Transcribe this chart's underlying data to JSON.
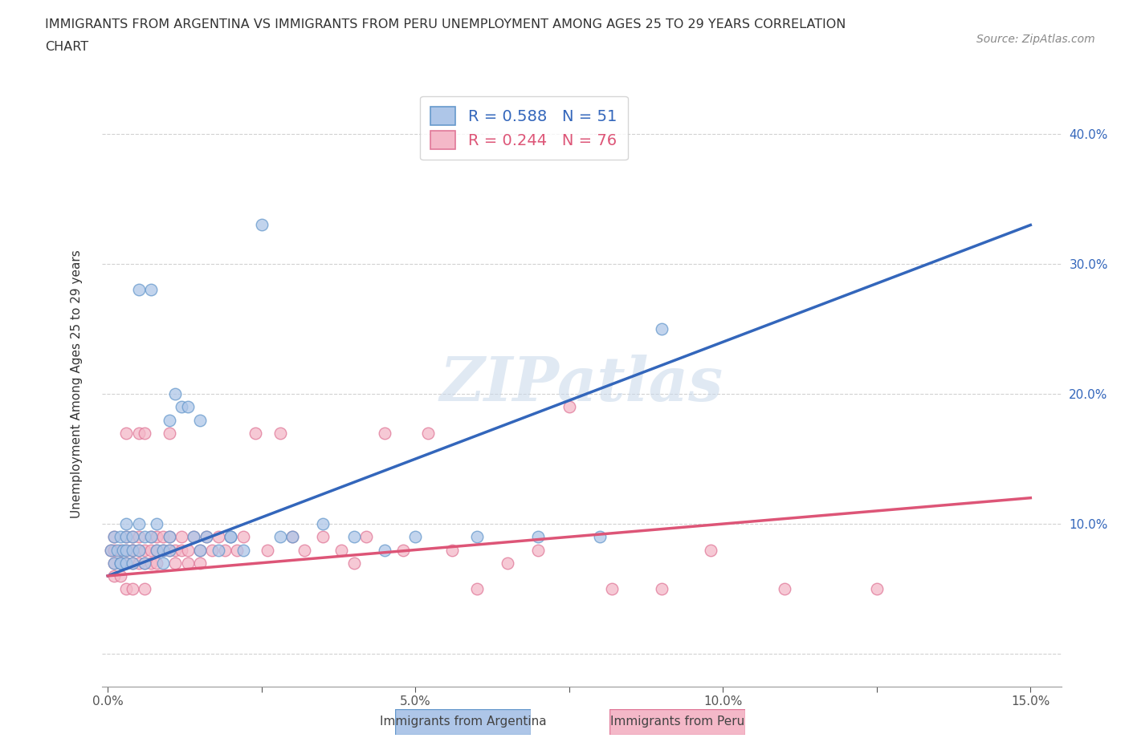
{
  "title_line1": "IMMIGRANTS FROM ARGENTINA VS IMMIGRANTS FROM PERU UNEMPLOYMENT AMONG AGES 25 TO 29 YEARS CORRELATION",
  "title_line2": "CHART",
  "source_text": "Source: ZipAtlas.com",
  "ylabel": "Unemployment Among Ages 25 to 29 years",
  "xlim": [
    -0.001,
    0.155
  ],
  "ylim": [
    -0.025,
    0.44
  ],
  "xticks": [
    0.0,
    0.025,
    0.05,
    0.075,
    0.1,
    0.125,
    0.15
  ],
  "xticklabels": [
    "0.0%",
    "",
    "5.0%",
    "",
    "10.0%",
    "",
    "15.0%"
  ],
  "yticks": [
    0.0,
    0.1,
    0.2,
    0.3,
    0.4
  ],
  "yticklabels": [
    "",
    "10.0%",
    "20.0%",
    "30.0%",
    "40.0%"
  ],
  "watermark": "ZIPatlas",
  "argentina_color": "#aec6e8",
  "argentina_edge": "#6699cc",
  "peru_color": "#f4b8c8",
  "peru_edge": "#e07898",
  "line_argentina": "#3366bb",
  "line_peru": "#dd5577",
  "R_argentina": 0.588,
  "N_argentina": 51,
  "R_peru": 0.244,
  "N_peru": 76,
  "grid_color": "#cccccc",
  "background_color": "#ffffff",
  "fig_background": "#ffffff",
  "argentina_legend": "Immigrants from Argentina",
  "peru_legend": "Immigrants from Peru",
  "line_arg_x0": 0.0,
  "line_arg_y0": 0.06,
  "line_arg_x1": 0.15,
  "line_arg_y1": 0.33,
  "line_peru_x0": 0.0,
  "line_peru_y0": 0.06,
  "line_peru_x1": 0.15,
  "line_peru_y1": 0.12
}
